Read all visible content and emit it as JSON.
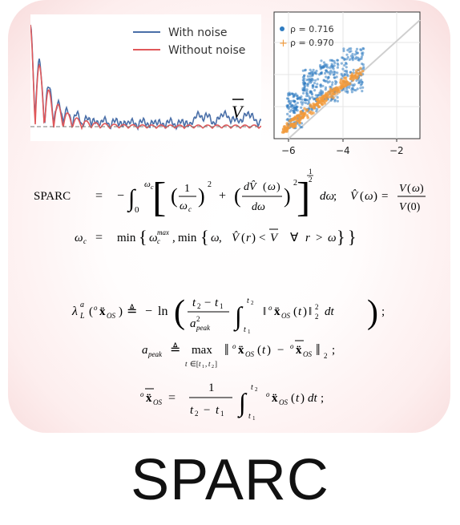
{
  "waveform_panel": {
    "legend": [
      "With noise",
      "Without noise"
    ],
    "overline_label": "V",
    "colors": {
      "with_noise": "#4a6fa8",
      "without_noise": "#e0585a"
    }
  },
  "scatter_panel": {
    "legend": [
      "ρ = 0.716",
      "ρ = 0.970"
    ],
    "x_ticks": [
      "−6",
      "−4",
      "−2"
    ],
    "colors": {
      "series_1": "#2f7cc1",
      "series_2": "#f29a3a"
    }
  },
  "equations": {
    "sparc_label": "SPARC",
    "eq_equal": "=",
    "semicolon": ";",
    "omega_c": "ω",
    "min_word": "min"
  },
  "footer": {
    "title": "SPARC"
  }
}
